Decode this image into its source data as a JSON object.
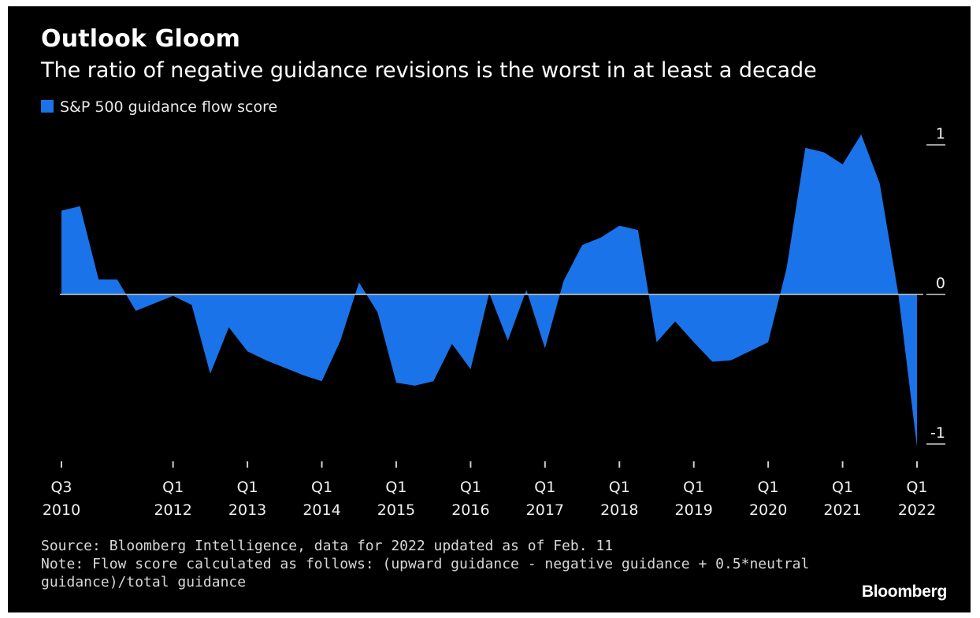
{
  "chart_data": {
    "type": "area",
    "title": "Outlook Gloom",
    "subtitle": "The ratio of negative guidance revisions is the worst in at least a decade",
    "legend": [
      {
        "name": "S&P 500 guidance flow score",
        "color": "#1a73e8"
      }
    ],
    "legend_position": "top-left",
    "grid": false,
    "ylim": [
      -1,
      1
    ],
    "y_ticks": [
      {
        "value": 1,
        "label": "1"
      },
      {
        "value": 0,
        "label": "0"
      },
      {
        "value": -1,
        "label": "-1"
      }
    ],
    "x_ticks": [
      {
        "x": 2010.5,
        "line1": "Q3",
        "line2": "2010"
      },
      {
        "x": 2012.0,
        "line1": "Q1",
        "line2": "2012"
      },
      {
        "x": 2013.0,
        "line1": "Q1",
        "line2": "2013"
      },
      {
        "x": 2014.0,
        "line1": "Q1",
        "line2": "2014"
      },
      {
        "x": 2015.0,
        "line1": "Q1",
        "line2": "2015"
      },
      {
        "x": 2016.0,
        "line1": "Q1",
        "line2": "2016"
      },
      {
        "x": 2017.0,
        "line1": "Q1",
        "line2": "2017"
      },
      {
        "x": 2018.0,
        "line1": "Q1",
        "line2": "2018"
      },
      {
        "x": 2019.0,
        "line1": "Q1",
        "line2": "2019"
      },
      {
        "x": 2020.0,
        "line1": "Q1",
        "line2": "2020"
      },
      {
        "x": 2021.0,
        "line1": "Q1",
        "line2": "2021"
      },
      {
        "x": 2022.0,
        "line1": "Q1",
        "line2": "2022"
      }
    ],
    "xlim": [
      2010.5,
      2022.0
    ],
    "series": [
      {
        "name": "S&P 500 guidance flow score",
        "color": "#1a73e8",
        "points": [
          [
            2010.5,
            0.56
          ],
          [
            2010.75,
            0.59
          ],
          [
            2011.0,
            0.1
          ],
          [
            2011.25,
            0.1
          ],
          [
            2011.5,
            -0.11
          ],
          [
            2011.75,
            -0.06
          ],
          [
            2012.0,
            -0.01
          ],
          [
            2012.25,
            -0.07
          ],
          [
            2012.5,
            -0.53
          ],
          [
            2012.75,
            -0.22
          ],
          [
            2013.0,
            -0.38
          ],
          [
            2013.25,
            -0.44
          ],
          [
            2013.5,
            -0.49
          ],
          [
            2013.75,
            -0.54
          ],
          [
            2014.0,
            -0.58
          ],
          [
            2014.25,
            -0.31
          ],
          [
            2014.5,
            0.08
          ],
          [
            2014.75,
            -0.12
          ],
          [
            2015.0,
            -0.59
          ],
          [
            2015.25,
            -0.61
          ],
          [
            2015.5,
            -0.58
          ],
          [
            2015.75,
            -0.33
          ],
          [
            2016.0,
            -0.5
          ],
          [
            2016.25,
            0.01
          ],
          [
            2016.5,
            -0.31
          ],
          [
            2016.75,
            0.03
          ],
          [
            2017.0,
            -0.36
          ],
          [
            2017.25,
            0.09
          ],
          [
            2017.5,
            0.33
          ],
          [
            2017.75,
            0.38
          ],
          [
            2018.0,
            0.46
          ],
          [
            2018.25,
            0.43
          ],
          [
            2018.5,
            -0.32
          ],
          [
            2018.75,
            -0.18
          ],
          [
            2019.0,
            -0.32
          ],
          [
            2019.25,
            -0.45
          ],
          [
            2019.5,
            -0.44
          ],
          [
            2019.75,
            -0.38
          ],
          [
            2020.0,
            -0.32
          ],
          [
            2020.25,
            0.18
          ],
          [
            2020.5,
            0.98
          ],
          [
            2020.75,
            0.95
          ],
          [
            2021.0,
            0.87
          ],
          [
            2021.25,
            1.07
          ],
          [
            2021.5,
            0.74
          ],
          [
            2021.75,
            0.0
          ],
          [
            2022.0,
            -1.02
          ]
        ]
      }
    ]
  },
  "footer": {
    "source": "Source: Bloomberg Intelligence, data for 2022 updated as of Feb. 11",
    "note_line1": "Note: Flow score calculated as follows: (upward guidance - negative guidance + 0.5*neutral",
    "note_line2": "guidance)/total guidance"
  },
  "brand": "Bloomberg"
}
